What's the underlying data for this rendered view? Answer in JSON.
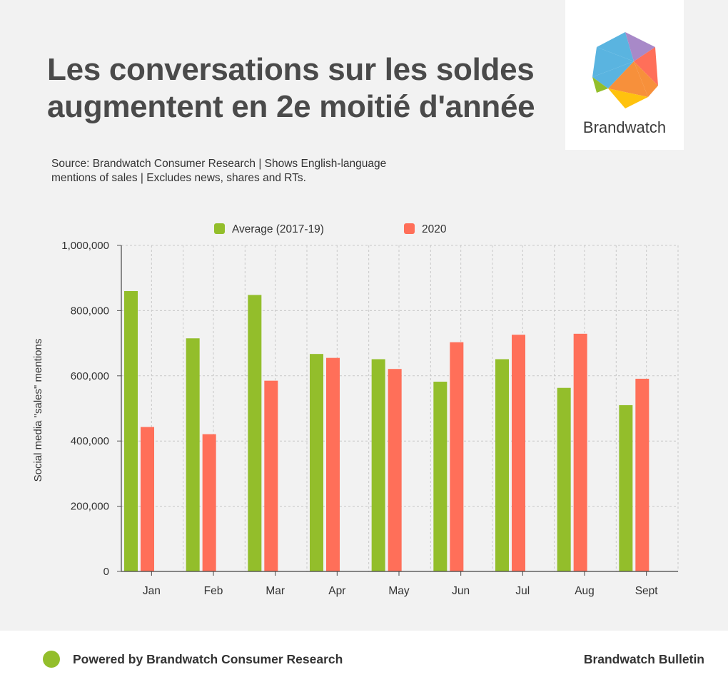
{
  "title_lines": [
    "Les conversations sur les soldes",
    "augmentent en 2e moitié d'année"
  ],
  "source_lines": [
    "Source: Brandwatch Consumer Research | Shows English-language",
    "mentions of sales | Excludes news, shares and RTs."
  ],
  "logo": {
    "name": "Brandwatch"
  },
  "footer": {
    "left": "Powered by Brandwatch Consumer Research",
    "right": "Brandwatch Bulletin"
  },
  "colors": {
    "average": "#93be2b",
    "y2020": "#ff6f59",
    "grid": "#c8c8c8",
    "background": "#f2f2f2"
  },
  "chart_data": {
    "type": "bar",
    "title": "Les conversations sur les soldes augmentent en 2e moitié d'année",
    "xlabel": "",
    "ylabel": "Social media \"sales\" mentions",
    "ylim": [
      0,
      1000000
    ],
    "yticks": [
      0,
      200000,
      400000,
      600000,
      800000,
      1000000
    ],
    "ytick_labels": [
      "0",
      "200,000",
      "400,000",
      "600,000",
      "800,000",
      "1,000,000"
    ],
    "grid": true,
    "legend_position": "top-center",
    "categories": [
      "Jan",
      "Feb",
      "Mar",
      "Apr",
      "May",
      "Jun",
      "Jul",
      "Aug",
      "Sept"
    ],
    "series": [
      {
        "name": "Average (2017-19)",
        "values": [
          860000,
          715000,
          848000,
          667000,
          651000,
          582000,
          651000,
          563000,
          510000
        ]
      },
      {
        "name": "2020",
        "values": [
          443000,
          421000,
          585000,
          655000,
          621000,
          703000,
          726000,
          729000,
          591000
        ]
      }
    ]
  }
}
